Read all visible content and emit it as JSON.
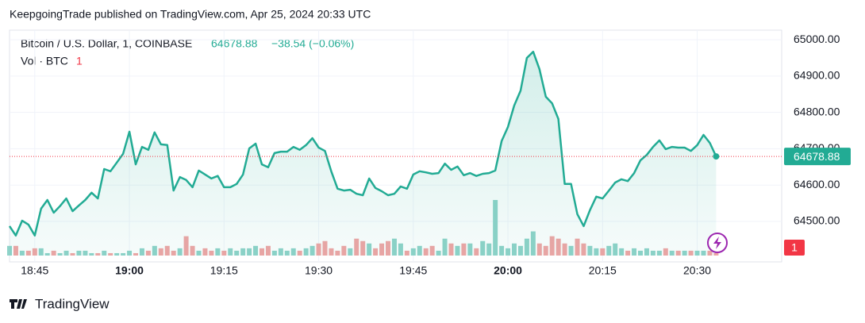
{
  "header": {
    "publisher": "KeepgoingTrade published on TradingView.com, Apr 25, 2024 20:33 UTC"
  },
  "footer": {
    "brand": "TradingView"
  },
  "chart_data": {
    "type": "line",
    "symbol": "Bitcoin / U.S. Dollar, 1, COINBASE",
    "change": "−38.54 (−0.06%)",
    "volume_label": "Vol · BTC",
    "color": "#22ab94",
    "up_color": "#8fd3c9",
    "down_color": "#f0a5a5",
    "x": [
      "18:41",
      "18:42",
      "18:43",
      "18:44",
      "18:45",
      "18:46",
      "18:47",
      "18:48",
      "18:49",
      "18:50",
      "18:51",
      "18:52",
      "18:53",
      "18:54",
      "18:55",
      "18:56",
      "18:57",
      "18:58",
      "18:59",
      "19:00",
      "19:01",
      "19:02",
      "19:03",
      "19:04",
      "19:05",
      "19:06",
      "19:07",
      "19:08",
      "19:09",
      "19:10",
      "19:11",
      "19:12",
      "19:13",
      "19:14",
      "19:15",
      "19:16",
      "19:17",
      "19:18",
      "19:19",
      "19:20",
      "19:21",
      "19:22",
      "19:23",
      "19:24",
      "19:25",
      "19:26",
      "19:27",
      "19:28",
      "19:29",
      "19:30",
      "19:31",
      "19:32",
      "19:33",
      "19:34",
      "19:35",
      "19:36",
      "19:37",
      "19:38",
      "19:39",
      "19:40",
      "19:41",
      "19:42",
      "19:43",
      "19:44",
      "19:45",
      "19:46",
      "19:47",
      "19:48",
      "19:49",
      "19:50",
      "19:51",
      "19:52",
      "19:53",
      "19:54",
      "19:55",
      "19:56",
      "19:57",
      "19:58",
      "19:59",
      "20:00",
      "20:01",
      "20:02",
      "20:03",
      "20:04",
      "20:05",
      "20:06",
      "20:07",
      "20:08",
      "20:09",
      "20:10",
      "20:11",
      "20:12",
      "20:13",
      "20:14",
      "20:15",
      "20:16",
      "20:17",
      "20:18",
      "20:19",
      "20:20",
      "20:21",
      "20:22",
      "20:23",
      "20:24",
      "20:25",
      "20:26",
      "20:27",
      "20:28",
      "20:29",
      "20:30",
      "20:31",
      "20:32",
      "20:33"
    ],
    "values": [
      64487,
      64461,
      64502,
      64491,
      64461,
      64535,
      64559,
      64524,
      64542,
      64563,
      64528,
      64544,
      64559,
      64579,
      64563,
      64644,
      64638,
      64662,
      64686,
      64747,
      64657,
      64705,
      64697,
      64745,
      64712,
      64710,
      64585,
      64622,
      64614,
      64594,
      64640,
      64629,
      64618,
      64625,
      64594,
      64594,
      64603,
      64629,
      64701,
      64714,
      64657,
      64649,
      64688,
      64692,
      64692,
      64705,
      64697,
      64710,
      64729,
      64703,
      64694,
      64638,
      64590,
      64585,
      64587,
      64576,
      64572,
      64618,
      64592,
      64583,
      64572,
      64576,
      64596,
      64590,
      64629,
      64638,
      64635,
      64631,
      64633,
      64659,
      64642,
      64651,
      64627,
      64633,
      64625,
      64631,
      64633,
      64640,
      64721,
      64760,
      64819,
      64860,
      64950,
      64967,
      64919,
      64843,
      64825,
      64782,
      64603,
      64603,
      64520,
      64487,
      64531,
      64568,
      64563,
      64585,
      64607,
      64616,
      64611,
      64633,
      64668,
      64683,
      64705,
      64723,
      64699,
      64705,
      64703,
      64703,
      64694,
      64710,
      64738,
      64716,
      64678.88
    ],
    "volume": [
      4,
      4,
      2,
      2,
      3,
      3,
      1,
      2,
      1,
      2,
      1,
      2,
      2,
      1,
      1,
      2,
      1,
      1,
      1,
      2,
      1,
      3,
      2,
      4,
      3,
      4,
      2,
      3,
      8,
      4,
      2,
      3,
      2,
      3,
      2,
      3,
      2,
      3,
      3,
      4,
      3,
      4,
      2,
      3,
      2,
      3,
      2,
      3,
      4,
      5,
      6,
      3,
      2,
      4,
      3,
      7,
      6,
      5,
      3,
      5,
      6,
      7,
      5,
      2,
      3,
      4,
      3,
      4,
      2,
      7,
      5,
      4,
      5,
      5,
      3,
      6,
      5,
      23,
      4,
      3,
      5,
      4,
      7,
      10,
      5,
      4,
      8,
      7,
      5,
      4,
      7,
      5,
      4,
      3,
      3,
      4,
      5,
      3,
      2,
      3,
      2,
      3,
      2,
      2,
      3,
      2,
      2,
      2,
      2,
      2,
      2,
      2,
      1
    ],
    "ylim": [
      64406,
      65022
    ],
    "yticks": [
      {
        "value": 64500,
        "label": "64500.00"
      },
      {
        "value": 64600,
        "label": "64600.00"
      },
      {
        "value": 64700,
        "label": "64700.00"
      },
      {
        "value": 64800,
        "label": "64800.00"
      },
      {
        "value": 64900,
        "label": "64900.00"
      },
      {
        "value": 65000,
        "label": "65000.00"
      }
    ],
    "xticks": [
      "18:45",
      "19:00",
      "19:15",
      "19:30",
      "19:45",
      "20:00",
      "20:15",
      "20:30"
    ]
  }
}
